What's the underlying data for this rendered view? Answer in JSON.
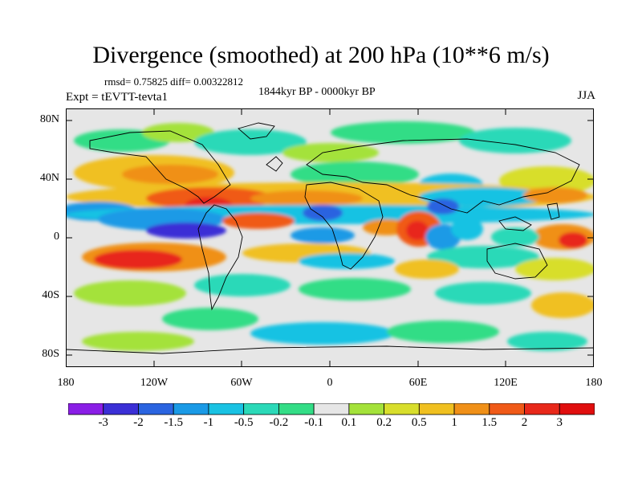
{
  "title": "Divergence (smoothed) at 200 hPa (10**6 m/s)",
  "stats": "rmsd= 0.75825 diff= 0.00322812",
  "period": "1844kyr BP - 0000kyr BP",
  "experiment": "Expt = tEVTT-tevta1",
  "season": "JJA",
  "lat_ticks": [
    "80N",
    "40N",
    "0",
    "40S",
    "80S"
  ],
  "lon_ticks": [
    "180",
    "120W",
    "60W",
    "0",
    "60E",
    "120E",
    "180"
  ],
  "colorbar": {
    "labels": [
      "-3",
      "-2",
      "-1.5",
      "-1",
      "-0.5",
      "-0.2",
      "-0.1",
      "0.1",
      "0.2",
      "0.5",
      "1",
      "1.5",
      "2",
      "3"
    ],
    "colors": [
      "#8a1ee6",
      "#3b2fd6",
      "#2a64e0",
      "#1a9ae6",
      "#19c2e3",
      "#2bd9b8",
      "#33dd86",
      "#e6e6e6",
      "#a4e23a",
      "#d8de2c",
      "#f0c020",
      "#f09018",
      "#f05a18",
      "#e8281a",
      "#e00e0e"
    ]
  }
}
